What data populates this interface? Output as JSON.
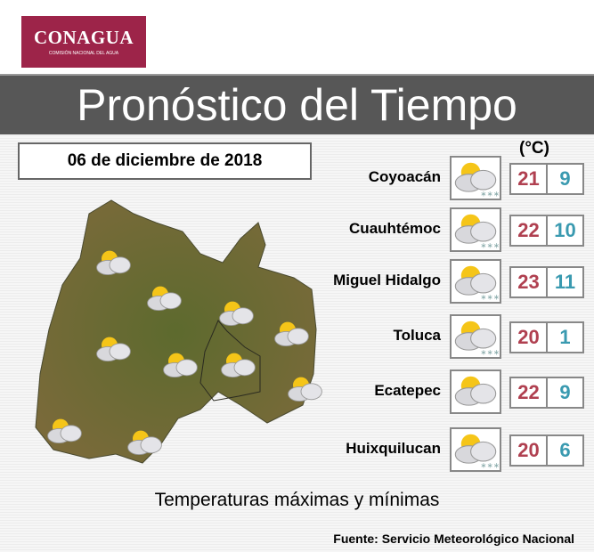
{
  "logo": {
    "name": "CONAGUA",
    "subtitle": "COMISIÓN NACIONAL DEL AGUA"
  },
  "title": "Pronóstico del Tiempo",
  "date": "06 de diciembre de 2018",
  "unit": "(°C)",
  "colors": {
    "brand": "#9d2449",
    "banner": "#575757",
    "max": "#b04050",
    "min": "#3a9ab0"
  },
  "forecast": [
    {
      "city": "Coyoacán",
      "icon": "partly-cloudy-rain-icon",
      "max": "21",
      "min": "9"
    },
    {
      "city": "Cuauhtémoc",
      "icon": "partly-cloudy-rain-icon",
      "max": "22",
      "min": "10"
    },
    {
      "city": "Miguel Hidalgo",
      "icon": "partly-cloudy-rain-icon",
      "max": "23",
      "min": "11"
    },
    {
      "city": "Toluca",
      "icon": "partly-cloudy-rain-icon",
      "max": "20",
      "min": "1"
    },
    {
      "city": "Ecatepec",
      "icon": "partly-cloudy-icon",
      "max": "22",
      "min": "9"
    },
    {
      "city": "Huixquilucan",
      "icon": "partly-cloudy-rain-icon",
      "max": "20",
      "min": "6"
    }
  ],
  "footer": "Temperaturas máximas y mínimas",
  "source": "Fuente: Servicio Meteorológico Nacional"
}
